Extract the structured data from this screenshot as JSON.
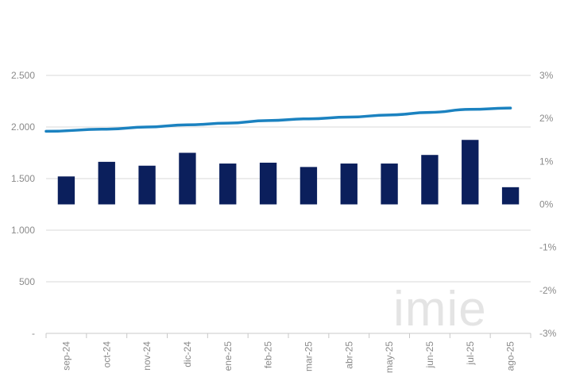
{
  "chart_data": {
    "type": "bar",
    "categories": [
      "sep-24",
      "oct-24",
      "nov-24",
      "dic-24",
      "ene-25",
      "feb-25",
      "mar-25",
      "abr-25",
      "may-25",
      "jun-25",
      "jul-25",
      "ago-25"
    ],
    "series": [
      {
        "type": "bar",
        "axis": "right",
        "values": [
          0.65,
          0.99,
          0.9,
          1.2,
          0.95,
          0.97,
          0.87,
          0.95,
          0.95,
          1.15,
          1.5,
          0.4
        ],
        "color": "#0b1f5c"
      },
      {
        "type": "line",
        "axis": "right",
        "values": [
          1.7,
          1.75,
          1.8,
          1.85,
          1.89,
          1.95,
          1.99,
          2.03,
          2.08,
          2.14,
          2.21,
          2.24
        ],
        "color": "#1b82c0"
      }
    ],
    "y_left": {
      "min": 0,
      "max": 2500,
      "ticks": [
        0,
        500,
        1000,
        1500,
        2000,
        2500
      ],
      "tick_labels": [
        "-",
        "500",
        "1.000",
        "1.500",
        "2.000",
        "2.500"
      ]
    },
    "y_right": {
      "min": -3,
      "max": 3,
      "ticks": [
        -3,
        -2,
        -1,
        0,
        1,
        2,
        3
      ],
      "tick_labels": [
        "-3%",
        "-2%",
        "-1%",
        "0%",
        "1%",
        "2%",
        "3%"
      ]
    },
    "grid": true,
    "legend": "none",
    "watermark": "imie"
  }
}
